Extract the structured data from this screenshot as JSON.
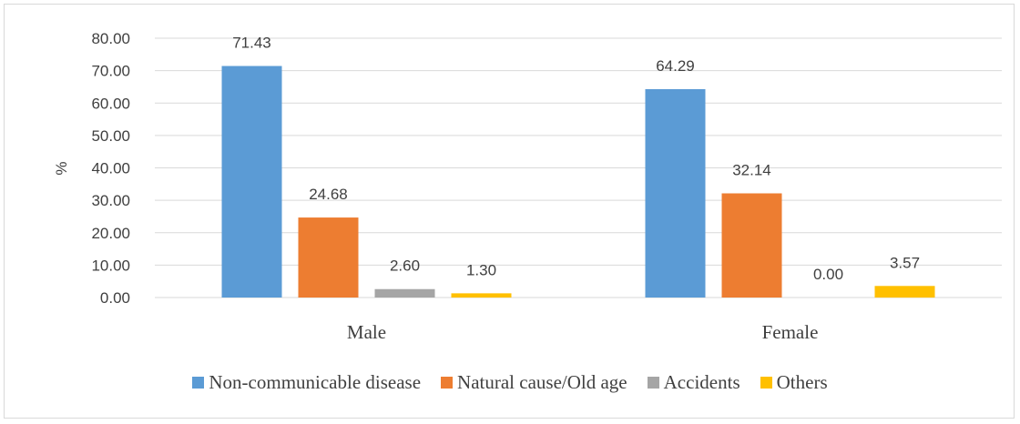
{
  "chart_data": {
    "type": "bar",
    "categories": [
      "Male",
      "Female"
    ],
    "ylabel": "%",
    "ylim": [
      0,
      80
    ],
    "yticks": [
      "0.00",
      "10.00",
      "20.00",
      "30.00",
      "40.00",
      "50.00",
      "60.00",
      "70.00",
      "80.00"
    ],
    "grid": true,
    "legend_position": "bottom",
    "series": [
      {
        "name": "Non-communicable disease",
        "color": "#5b9bd5",
        "values": [
          71.43,
          64.29
        ],
        "labels": [
          "71.43",
          "64.29"
        ]
      },
      {
        "name": "Natural cause/Old age",
        "color": "#ed7d31",
        "values": [
          24.68,
          32.14
        ],
        "labels": [
          "24.68",
          "32.14"
        ]
      },
      {
        "name": "Accidents",
        "color": "#a5a5a5",
        "values": [
          2.6,
          0.0
        ],
        "labels": [
          "2.60",
          "0.00"
        ]
      },
      {
        "name": "Others",
        "color": "#ffc000",
        "values": [
          1.3,
          3.57
        ],
        "labels": [
          "1.30",
          "3.57"
        ]
      }
    ]
  }
}
